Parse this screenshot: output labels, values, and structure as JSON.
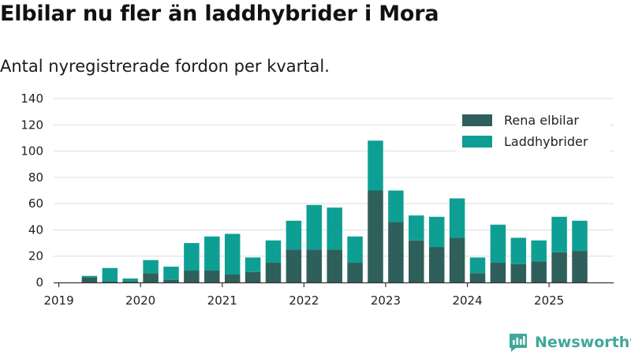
{
  "page": {
    "title": "Elbilar nu fler än laddhybrider i Mora",
    "subtitle": "Antal nyregistrerade fordon per kvartal.",
    "brand": "Newsworthy"
  },
  "chart_data": {
    "type": "bar",
    "stacked": true,
    "categories": [
      "2019 Q1",
      "2019 Q2",
      "2019 Q3",
      "2019 Q4",
      "2020 Q1",
      "2020 Q2",
      "2020 Q3",
      "2020 Q4",
      "2021 Q1",
      "2021 Q2",
      "2021 Q3",
      "2021 Q4",
      "2022 Q1",
      "2022 Q2",
      "2022 Q3",
      "2022 Q4",
      "2023 Q1",
      "2023 Q2",
      "2023 Q3",
      "2023 Q4",
      "2024 Q1",
      "2024 Q2",
      "2024 Q3",
      "2024 Q4",
      "2025 Q1",
      "2025 Q2"
    ],
    "series": [
      {
        "name": "Rena elbilar",
        "color": "#2f5f5a",
        "values": [
          0,
          4,
          1,
          1,
          7,
          2,
          9,
          9,
          6,
          8,
          15,
          25,
          25,
          25,
          15,
          70,
          46,
          32,
          27,
          34,
          7,
          15,
          14,
          16,
          23,
          24
        ]
      },
      {
        "name": "Laddhybrider",
        "color": "#0e9f94",
        "values": [
          0,
          1,
          10,
          2,
          10,
          10,
          21,
          26,
          31,
          11,
          17,
          22,
          34,
          32,
          20,
          38,
          24,
          19,
          23,
          30,
          12,
          29,
          20,
          16,
          27,
          23
        ]
      }
    ],
    "x_tick_labels": [
      "2019",
      "2020",
      "2021",
      "2022",
      "2023",
      "2024",
      "2025"
    ],
    "y_tick_labels": [
      "0",
      "20",
      "40",
      "60",
      "80",
      "100",
      "120",
      "140"
    ],
    "ylim": [
      0,
      140
    ],
    "grid": "horizontal",
    "legend_position": "top-right"
  }
}
